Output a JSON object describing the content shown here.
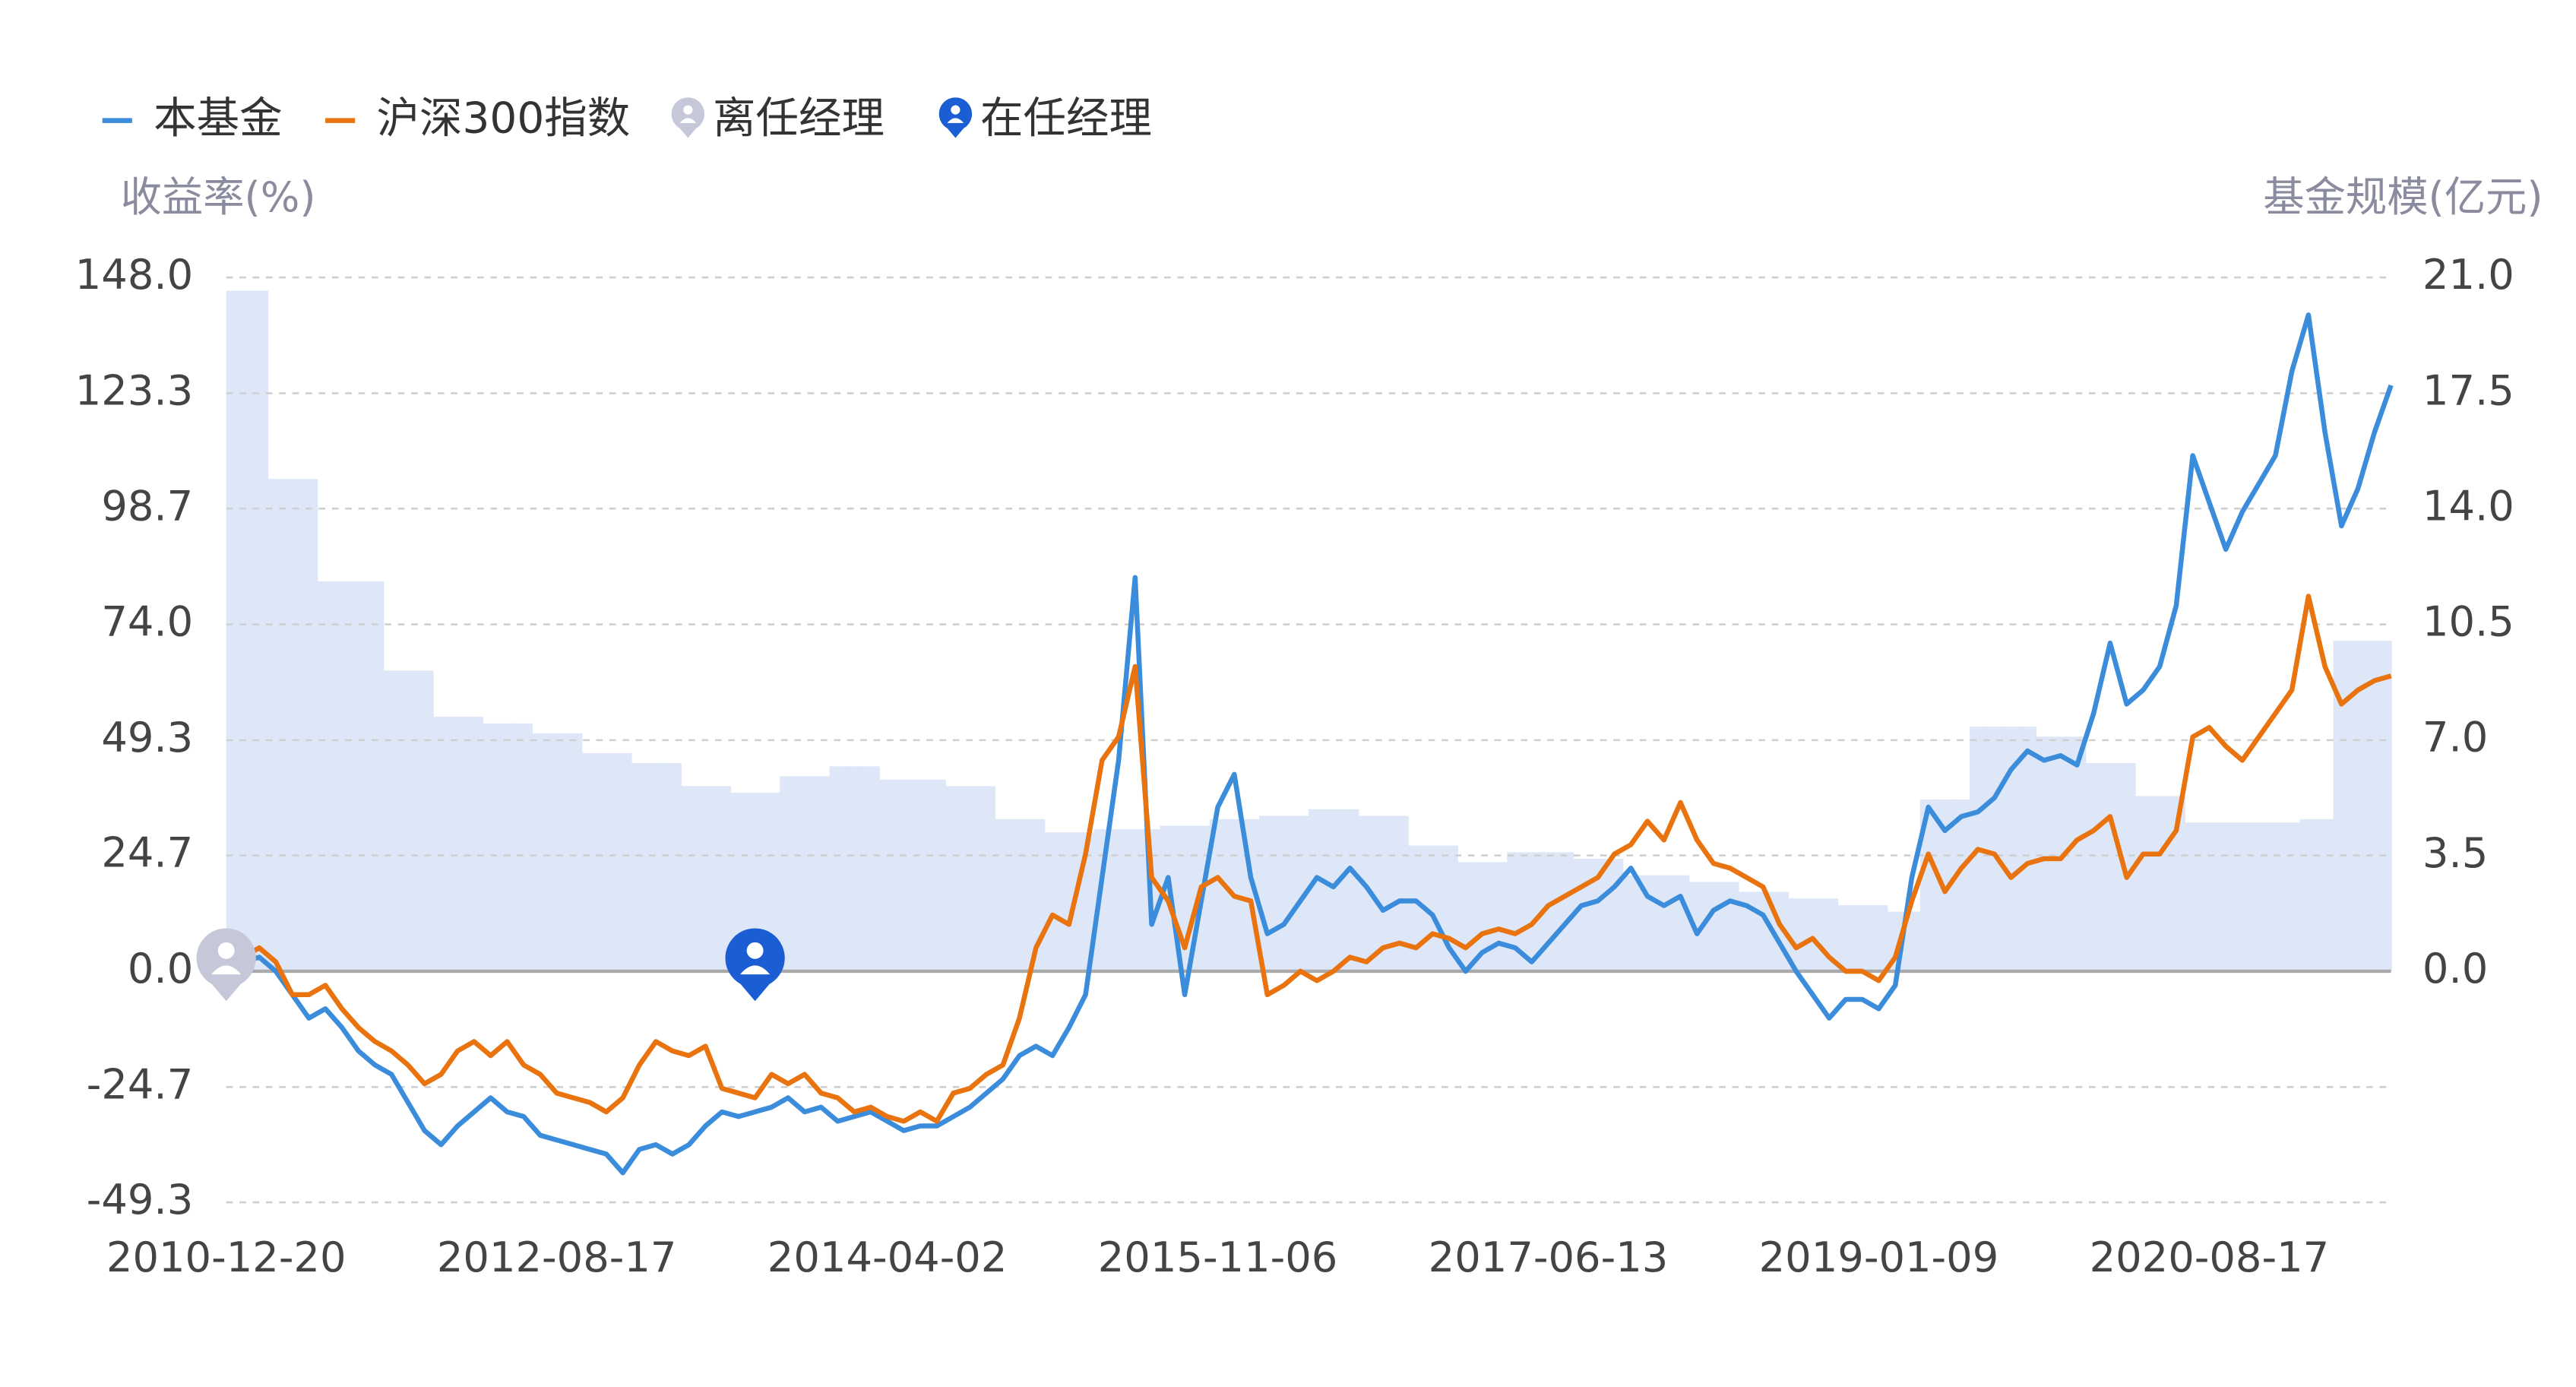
{
  "chart_data": {
    "type": "line",
    "y_title": "收益率(%)",
    "y2_title": "基金规模(亿元)",
    "categories": [
      "2010-12-20",
      null,
      null,
      null,
      null,
      null,
      null,
      null,
      null,
      null,
      null,
      null,
      null,
      null,
      null,
      null,
      null,
      null,
      null,
      null,
      "2012-08-17",
      null,
      null,
      null,
      null,
      null,
      null,
      null,
      null,
      null,
      null,
      null,
      null,
      null,
      null,
      null,
      null,
      null,
      null,
      null,
      "2014-04-02",
      null,
      null,
      null,
      null,
      null,
      null,
      null,
      null,
      null,
      null,
      null,
      null,
      null,
      null,
      null,
      null,
      null,
      null,
      null,
      "2015-11-06",
      null,
      null,
      null,
      null,
      null,
      null,
      null,
      null,
      null,
      null,
      null,
      null,
      null,
      null,
      null,
      null,
      null,
      null,
      null,
      "2017-06-13",
      null,
      null,
      null,
      null,
      null,
      null,
      null,
      null,
      null,
      null,
      null,
      null,
      null,
      null,
      null,
      null,
      null,
      null,
      null,
      "2019-01-09",
      null,
      null,
      null,
      null,
      null,
      null,
      null,
      null,
      null,
      null,
      null,
      null,
      null,
      null,
      null,
      null,
      null,
      null,
      null,
      "2020-08-17",
      null,
      null,
      null,
      null,
      null,
      null,
      null,
      null,
      null,
      null,
      null
    ],
    "series": [
      {
        "name": "本基金",
        "color": "#3b8ddb",
        "values": [
          0,
          2,
          3,
          0,
          -5,
          -10,
          -8,
          -12,
          -17,
          -20,
          -22,
          -28,
          -34,
          -37,
          -33,
          -30,
          -27,
          -30,
          -31,
          -35,
          -36,
          -37,
          -38,
          -39,
          -43,
          -38,
          -37,
          -39,
          -37,
          -33,
          -30,
          -31,
          -30,
          -29,
          -27,
          -30,
          -29,
          -32,
          -31,
          -30,
          -32,
          -34,
          -33,
          -33,
          -31,
          -29,
          -26,
          -23,
          -18,
          -16,
          -18,
          -12,
          -5,
          20,
          45,
          84,
          10,
          20,
          -5,
          15,
          35,
          42,
          20,
          8,
          10,
          15,
          20,
          18,
          22,
          18,
          13,
          15,
          15,
          12,
          5,
          0,
          4,
          6,
          5,
          2,
          6,
          10,
          14,
          15,
          18,
          22,
          16,
          14,
          16,
          8,
          13,
          15,
          14,
          12,
          6,
          0,
          -5,
          -10,
          -6,
          -6,
          -8,
          -3,
          20,
          35,
          30,
          33,
          34,
          37,
          43,
          47,
          45,
          46,
          44,
          55,
          70,
          57,
          60,
          65,
          78,
          110,
          100,
          90,
          98,
          104,
          110,
          128,
          140,
          115,
          95,
          103,
          115,
          125
        ]
      },
      {
        "name": "沪深300指数",
        "color": "#e8730f",
        "values": [
          0,
          3,
          5,
          2,
          -5,
          -5,
          -3,
          -8,
          -12,
          -15,
          -17,
          -20,
          -24,
          -22,
          -17,
          -15,
          -18,
          -15,
          -20,
          -22,
          -26,
          -27,
          -28,
          -30,
          -27,
          -20,
          -15,
          -17,
          -18,
          -16,
          -25,
          -26,
          -27,
          -22,
          -24,
          -22,
          -26,
          -27,
          -30,
          -29,
          -31,
          -32,
          -30,
          -32,
          -26,
          -25,
          -22,
          -20,
          -10,
          5,
          12,
          10,
          25,
          45,
          50,
          65,
          20,
          15,
          5,
          18,
          20,
          16,
          15,
          -5,
          -3,
          0,
          -2,
          0,
          3,
          2,
          5,
          6,
          5,
          8,
          7,
          5,
          8,
          9,
          8,
          10,
          14,
          16,
          18,
          20,
          25,
          27,
          32,
          28,
          36,
          28,
          23,
          22,
          20,
          18,
          10,
          5,
          7,
          3,
          0,
          0,
          -2,
          3,
          15,
          25,
          17,
          22,
          26,
          25,
          20,
          23,
          24,
          24,
          28,
          30,
          33,
          20,
          25,
          25,
          30,
          50,
          52,
          48,
          45,
          50,
          55,
          60,
          80,
          65,
          57,
          60,
          62,
          63
        ]
      },
      {
        "type": "bar",
        "axis": "y2",
        "color": "#dde7f8",
        "values": [
          20.6,
          20.6,
          20.6,
          14.9,
          14.9,
          14.9,
          11.8,
          11.8,
          11.8,
          11.8,
          9.1,
          9.1,
          9.1,
          7.7,
          7.7,
          7.7,
          7.5,
          7.5,
          7.5,
          7.2,
          7.2,
          7.2,
          6.6,
          6.6,
          6.6,
          6.3,
          6.3,
          6.3,
          5.6,
          5.6,
          5.6,
          5.4,
          5.4,
          5.4,
          5.9,
          5.9,
          5.9,
          6.2,
          6.2,
          6.2,
          5.8,
          5.8,
          5.8,
          5.8,
          5.6,
          5.6,
          5.6,
          4.6,
          4.6,
          4.6,
          4.2,
          4.2,
          4.2,
          4.3,
          4.3,
          4.3,
          4.3,
          4.4,
          4.4,
          4.4,
          4.6,
          4.6,
          4.6,
          4.7,
          4.7,
          4.7,
          4.9,
          4.9,
          4.9,
          4.7,
          4.7,
          4.7,
          3.8,
          3.8,
          3.8,
          3.3,
          3.3,
          3.3,
          3.6,
          3.6,
          3.6,
          3.6,
          3.4,
          3.4,
          3.4,
          2.9,
          2.9,
          2.9,
          2.9,
          2.7,
          2.7,
          2.7,
          2.4,
          2.4,
          2.4,
          2.2,
          2.2,
          2.2,
          2.0,
          2.0,
          2.0,
          1.8,
          1.8,
          5.2,
          5.2,
          5.2,
          7.4,
          7.4,
          7.4,
          7.4,
          7.1,
          7.1,
          7.1,
          6.3,
          6.3,
          6.3,
          5.3,
          5.3,
          5.3,
          4.5,
          4.5,
          4.5,
          4.5,
          4.5,
          4.5,
          4.5,
          4.6,
          4.6,
          10.0,
          10.0,
          10.0,
          10.0
        ]
      }
    ],
    "events": [
      {
        "name": "离任经理",
        "color": "#c6c7d9",
        "category": 0,
        "value": 0
      },
      {
        "name": "在任经理",
        "color": "#1b5dd2",
        "category": 32,
        "value": 0
      }
    ],
    "ylim": [
      -49.3,
      148.0
    ],
    "yticks": [
      -49.3,
      -24.7,
      {
        "value": 0,
        "label": "0.0"
      },
      24.7,
      49.3,
      {
        "value": 74,
        "label": "74.0"
      },
      98.7,
      123.3,
      {
        "value": 148,
        "label": "148.0"
      }
    ],
    "y2lim": [
      -7.0,
      21.0
    ],
    "y2ticks": [
      {
        "value": 0,
        "label": "0.0"
      },
      3.5,
      {
        "value": 7,
        "label": "7.0"
      },
      10.5,
      {
        "value": 14,
        "label": "14.0"
      },
      17.5,
      {
        "value": 21,
        "label": "21.0"
      }
    ],
    "grid": true
  }
}
